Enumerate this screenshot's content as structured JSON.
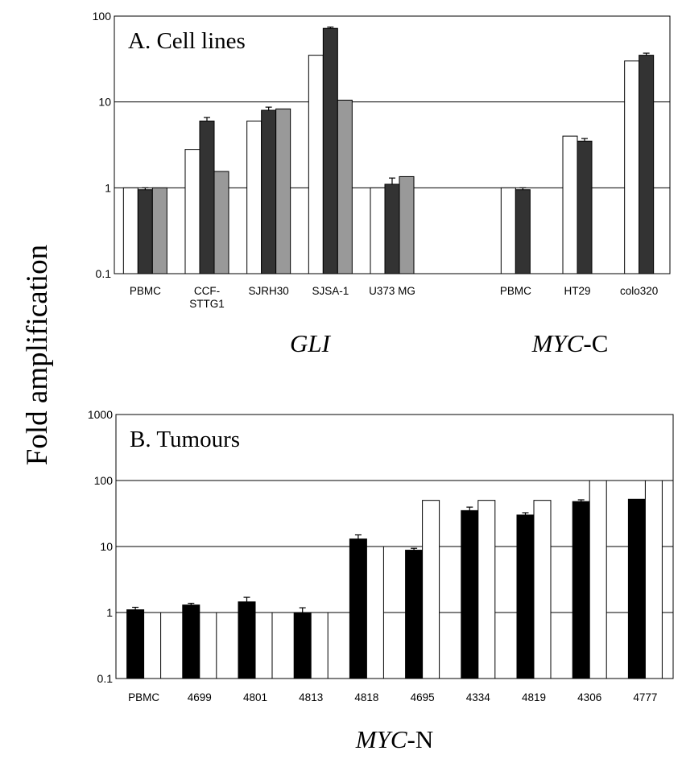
{
  "figure": {
    "ylabel": "Fold amplification",
    "group_labels": [
      {
        "parts": [
          {
            "text": "GLI",
            "italic": true
          }
        ]
      },
      {
        "parts": [
          {
            "text": "MYC",
            "italic": true
          },
          {
            "text": "-C",
            "italic": false
          }
        ]
      }
    ],
    "bottom_label": {
      "parts": [
        {
          "text": "MYC",
          "italic": true
        },
        {
          "text": "-N",
          "italic": false
        }
      ]
    }
  },
  "chart_data": [
    {
      "type": "bar",
      "title": "A. Cell lines",
      "yscale": "log",
      "ylim": [
        0.1,
        100
      ],
      "yticks": [
        "0.1",
        "1",
        "10",
        "100"
      ],
      "grid": true,
      "colors": {
        "white": "#ffffff",
        "dark": "#333333",
        "grey": "#999999"
      },
      "categories": [
        {
          "label": [
            "PBMC"
          ],
          "values": [
            1.0,
            0.95,
            1.0
          ],
          "errors": [
            null,
            0.05,
            null
          ],
          "colors": [
            "white",
            "dark",
            "grey"
          ]
        },
        {
          "label": [
            "CCF-",
            "STTG1"
          ],
          "values": [
            2.8,
            6.0,
            1.55
          ],
          "errors": [
            null,
            0.6,
            null
          ],
          "colors": [
            "white",
            "dark",
            "grey"
          ]
        },
        {
          "label": [
            "SJRH30"
          ],
          "values": [
            6.0,
            8.0,
            8.3
          ],
          "errors": [
            null,
            0.7,
            null
          ],
          "colors": [
            "white",
            "dark",
            "grey"
          ]
        },
        {
          "label": [
            "SJSA-1"
          ],
          "values": [
            35,
            72,
            10.5
          ],
          "errors": [
            null,
            2.5,
            null
          ],
          "colors": [
            "white",
            "dark",
            "grey"
          ]
        },
        {
          "label": [
            "U373 MG"
          ],
          "values": [
            1.0,
            1.1,
            1.35
          ],
          "errors": [
            null,
            0.2,
            null
          ],
          "colors": [
            "white",
            "dark",
            "grey"
          ]
        },
        {
          "label": [
            ""
          ],
          "values": [],
          "errors": [],
          "colors": []
        },
        {
          "label": [
            "PBMC"
          ],
          "values": [
            1.0,
            0.95
          ],
          "errors": [
            null,
            0.05
          ],
          "colors": [
            "white",
            "dark"
          ]
        },
        {
          "label": [
            "HT29"
          ],
          "values": [
            4.0,
            3.5
          ],
          "errors": [
            null,
            0.25
          ],
          "colors": [
            "white",
            "dark"
          ]
        },
        {
          "label": [
            "colo320"
          ],
          "values": [
            30,
            35
          ],
          "errors": [
            null,
            2.0
          ],
          "colors": [
            "white",
            "dark"
          ]
        }
      ]
    },
    {
      "type": "bar",
      "title": "B. Tumours",
      "yscale": "log",
      "ylim": [
        0.1,
        1000
      ],
      "yticks": [
        "0.1",
        "1",
        "10",
        "100",
        "1000"
      ],
      "grid": true,
      "colors": {
        "black": "#000000",
        "white": "#ffffff"
      },
      "categories": [
        {
          "label": [
            "PBMC"
          ],
          "values": [
            1.1,
            1.0
          ],
          "errors": [
            0.1,
            null
          ],
          "colors": [
            "black",
            "white"
          ]
        },
        {
          "label": [
            "4699"
          ],
          "values": [
            1.3,
            1.0
          ],
          "errors": [
            0.08,
            null
          ],
          "colors": [
            "black",
            "white"
          ]
        },
        {
          "label": [
            "4801"
          ],
          "values": [
            1.45,
            1.0
          ],
          "errors": [
            0.25,
            null
          ],
          "colors": [
            "black",
            "white"
          ]
        },
        {
          "label": [
            "4813"
          ],
          "values": [
            1.0,
            1.0
          ],
          "errors": [
            0.18,
            null
          ],
          "colors": [
            "black",
            "white"
          ]
        },
        {
          "label": [
            "4818"
          ],
          "values": [
            13,
            10
          ],
          "errors": [
            2.0,
            null
          ],
          "colors": [
            "black",
            "white"
          ]
        },
        {
          "label": [
            "4695"
          ],
          "values": [
            8.8,
            50
          ],
          "errors": [
            0.6,
            null
          ],
          "colors": [
            "black",
            "white"
          ]
        },
        {
          "label": [
            "4334"
          ],
          "values": [
            35,
            50
          ],
          "errors": [
            4.5,
            null
          ],
          "colors": [
            "black",
            "white"
          ]
        },
        {
          "label": [
            "4819"
          ],
          "values": [
            30,
            50
          ],
          "errors": [
            2.5,
            null
          ],
          "colors": [
            "black",
            "white"
          ]
        },
        {
          "label": [
            "4306"
          ],
          "values": [
            48,
            100
          ],
          "errors": [
            3.0,
            null
          ],
          "colors": [
            "black",
            "white"
          ]
        },
        {
          "label": [
            "4777"
          ],
          "values": [
            52,
            100
          ],
          "errors": [
            null,
            null
          ],
          "colors": [
            "black",
            "white"
          ]
        }
      ]
    }
  ]
}
